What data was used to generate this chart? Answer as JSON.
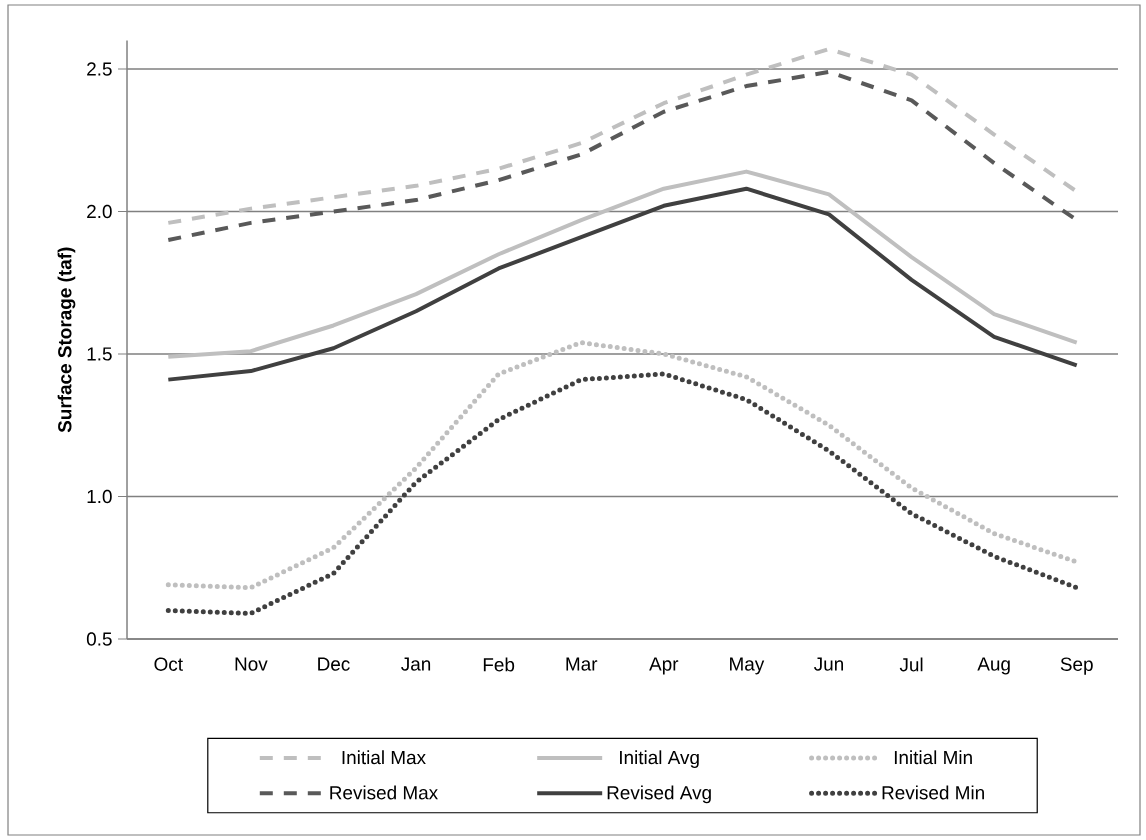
{
  "chart_data": {
    "type": "line",
    "ylabel": "Surface Storage (taf)",
    "categories": [
      "Oct",
      "Nov",
      "Dec",
      "Jan",
      "Feb",
      "Mar",
      "Apr",
      "May",
      "Jun",
      "Jul",
      "Aug",
      "Sep"
    ],
    "series": [
      {
        "name": "Initial Max",
        "color": "#bfbfbf",
        "line_style": "dashed",
        "values": [
          1.96,
          2.01,
          2.05,
          2.09,
          2.15,
          2.24,
          2.38,
          2.48,
          2.57,
          2.48,
          2.27,
          2.07
        ]
      },
      {
        "name": "Initial Avg",
        "color": "#bfbfbf",
        "line_style": "solid",
        "values": [
          1.49,
          1.51,
          1.6,
          1.71,
          1.85,
          1.97,
          2.08,
          2.14,
          2.06,
          1.84,
          1.64,
          1.54
        ]
      },
      {
        "name": "Initial Min",
        "color": "#bfbfbf",
        "line_style": "dotted",
        "values": [
          0.69,
          0.68,
          0.82,
          1.1,
          1.43,
          1.54,
          1.5,
          1.42,
          1.25,
          1.03,
          0.87,
          0.77
        ]
      },
      {
        "name": "Revised Max",
        "color": "#595959",
        "line_style": "dashed",
        "values": [
          1.9,
          1.96,
          2.0,
          2.04,
          2.11,
          2.2,
          2.35,
          2.44,
          2.49,
          2.39,
          2.17,
          1.97
        ]
      },
      {
        "name": "Revised Avg",
        "color": "#404040",
        "line_style": "solid",
        "values": [
          1.41,
          1.44,
          1.52,
          1.65,
          1.8,
          1.91,
          2.02,
          2.08,
          1.99,
          1.76,
          1.56,
          1.46
        ]
      },
      {
        "name": "Revised Min",
        "color": "#404040",
        "line_style": "dotted",
        "values": [
          0.6,
          0.59,
          0.73,
          1.05,
          1.27,
          1.41,
          1.43,
          1.34,
          1.16,
          0.94,
          0.79,
          0.68
        ]
      }
    ],
    "ylim": [
      0.5,
      2.6
    ],
    "yticks": [
      0.5,
      {
        "value": 1.0,
        "label": "1.0"
      },
      1.5,
      {
        "value": 2.0,
        "label": "2.0"
      },
      2.5
    ],
    "grid": "y",
    "legend": "bottom"
  }
}
